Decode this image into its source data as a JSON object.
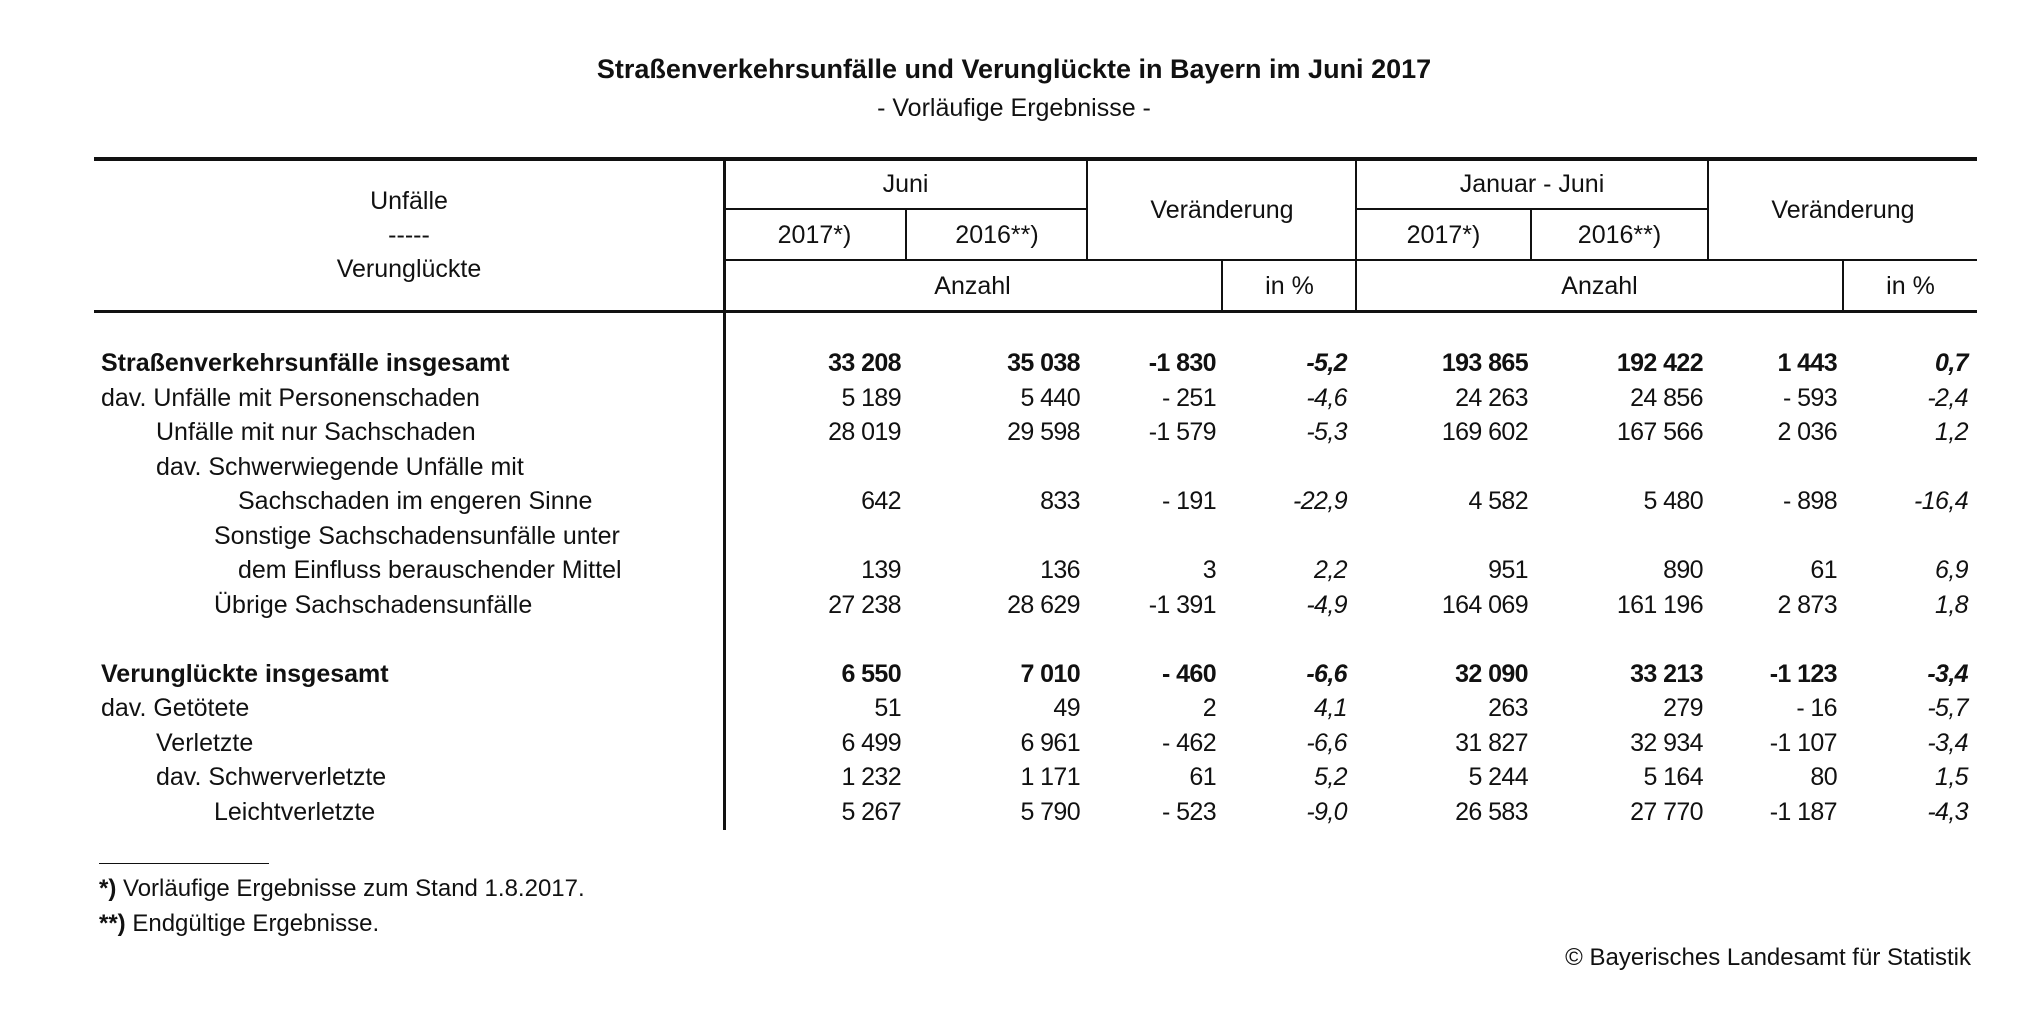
{
  "title": "Straßenverkehrsunfälle und Verunglückte in Bayern im Juni 2017",
  "subtitle": "- Vorläufige Ergebnisse -",
  "header": {
    "stub_line1": "Unfälle",
    "stub_line2": "-----",
    "stub_line3": "Verunglückte",
    "juni": "Juni",
    "jan_juni": "Januar - Juni",
    "y2017": "2017*)",
    "y2016": "2016**)",
    "change": "Veränderung",
    "anzahl": "Anzahl",
    "in_pct": "in %"
  },
  "rows": [
    {
      "label": "Straßenverkehrsunfälle insgesamt",
      "indent": 0,
      "bold": true,
      "values": [
        "33 208",
        "35 038",
        "-1 830",
        "-5,2",
        "193 865",
        "192 422",
        "1 443",
        "0,7"
      ]
    },
    {
      "label": "dav. Unfälle mit Personenschaden",
      "indent": 0,
      "bold": false,
      "values": [
        "5 189",
        "5 440",
        "- 251",
        "-4,6",
        "24 263",
        "24 856",
        "- 593",
        "-2,4"
      ]
    },
    {
      "label": "Unfälle mit nur Sachschaden",
      "indent": 1,
      "bold": false,
      "values": [
        "28 019",
        "29 598",
        "-1 579",
        "-5,3",
        "169 602",
        "167 566",
        "2 036",
        "1,2"
      ]
    },
    {
      "label": "dav. Schwerwiegende Unfälle mit",
      "indent": 1,
      "bold": false,
      "values": []
    },
    {
      "label": "Sachschaden im engeren Sinne",
      "indent": 3,
      "bold": false,
      "values": [
        "642",
        "833",
        "- 191",
        "-22,9",
        "4 582",
        "5 480",
        "- 898",
        "-16,4"
      ]
    },
    {
      "label": "Sonstige Sachschadensunfälle unter",
      "indent": 2,
      "bold": false,
      "values": []
    },
    {
      "label": "dem Einfluss berauschender Mittel",
      "indent": 3,
      "bold": false,
      "values": [
        "139",
        "136",
        "3",
        "2,2",
        "951",
        "890",
        "61",
        "6,9"
      ]
    },
    {
      "label": "Übrige Sachschadensunfälle",
      "indent": 2,
      "bold": false,
      "values": [
        "27 238",
        "28 629",
        "-1 391",
        "-4,9",
        "164 069",
        "161 196",
        "2 873",
        "1,8"
      ]
    },
    {
      "label": "Verunglückte insgesamt",
      "indent": 0,
      "bold": true,
      "gap": true,
      "values": [
        "6 550",
        "7 010",
        "- 460",
        "-6,6",
        "32 090",
        "33 213",
        "-1 123",
        "-3,4"
      ]
    },
    {
      "label": "dav. Getötete",
      "indent": 0,
      "bold": false,
      "values": [
        "51",
        "49",
        "2",
        "4,1",
        "263",
        "279",
        "- 16",
        "-5,7"
      ]
    },
    {
      "label": "Verletzte",
      "indent": 1,
      "bold": false,
      "values": [
        "6 499",
        "6 961",
        "- 462",
        "-6,6",
        "31 827",
        "32 934",
        "-1 107",
        "-3,4"
      ]
    },
    {
      "label": "dav. Schwerverletzte",
      "indent": 1,
      "bold": false,
      "values": [
        "1 232",
        "1 171",
        "61",
        "5,2",
        "5 244",
        "5 164",
        "80",
        "1,5"
      ]
    },
    {
      "label": "Leichtverletzte",
      "indent": 2,
      "bold": false,
      "values": [
        "5 267",
        "5 790",
        "- 523",
        "-9,0",
        "26 583",
        "27 770",
        "-1 187",
        "-4,3"
      ]
    }
  ],
  "footnotes": [
    {
      "mark": "*)",
      "text": " Vorläufige Ergebnisse zum Stand 1.8.2017."
    },
    {
      "mark": "**)",
      "text": " Endgültige Ergebnisse."
    }
  ],
  "copyright": "© Bayerisches Landesamt für Statistik"
}
